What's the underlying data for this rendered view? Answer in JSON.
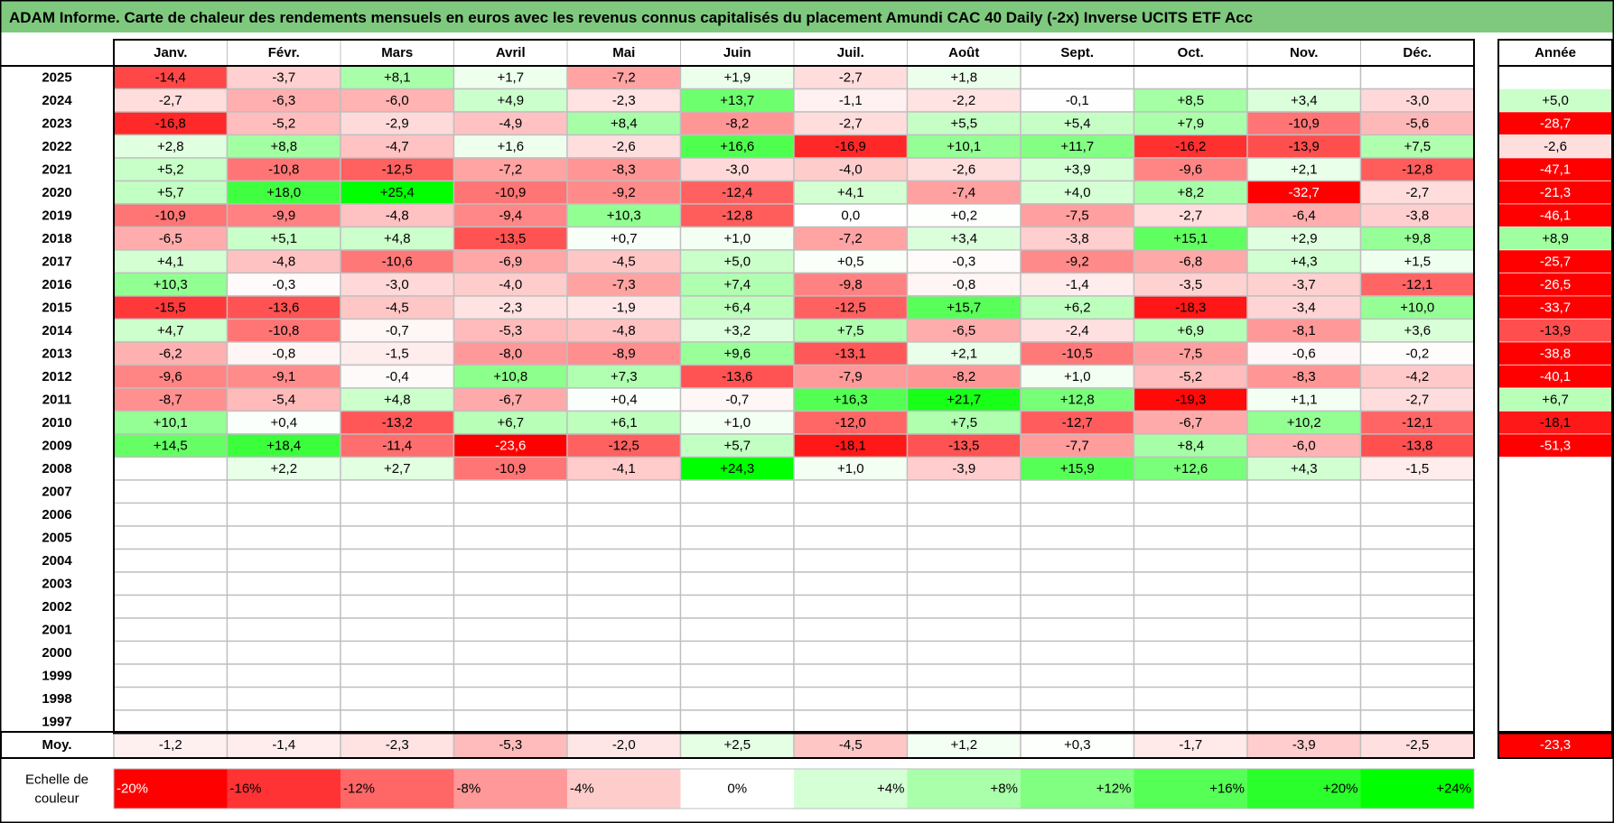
{
  "title": "ADAM Informe. Carte de chaleur des rendements mensuels en euros avec les revenus connus capitalisés du placement Amundi CAC 40 Daily (-2x) Inverse UCITS ETF Acc",
  "colors": {
    "title_bar": "#7fc97f",
    "negative": "#ff0000",
    "positive": "#00ff00",
    "neutral": "#ffffff",
    "grid": "#bfbfbf",
    "border": "#000000"
  },
  "chart_data": {
    "type": "heatmap",
    "months": [
      "Janv.",
      "Févr.",
      "Mars",
      "Avril",
      "Mai",
      "Juin",
      "Juil.",
      "Août",
      "Sept.",
      "Oct.",
      "Nov.",
      "Déc."
    ],
    "year_column_label": "Année",
    "rows": [
      {
        "year": "2025",
        "months": [
          "-14,4",
          "-3,7",
          "+8,1",
          "+1,7",
          "-7,2",
          "+1,9",
          "-2,7",
          "+1,8",
          "",
          "",
          "",
          ""
        ],
        "annual": ""
      },
      {
        "year": "2024",
        "months": [
          "-2,7",
          "-6,3",
          "-6,0",
          "+4,9",
          "-2,3",
          "+13,7",
          "-1,1",
          "-2,2",
          "-0,1",
          "+8,5",
          "+3,4",
          "-3,0"
        ],
        "annual": "+5,0"
      },
      {
        "year": "2023",
        "months": [
          "-16,8",
          "-5,2",
          "-2,9",
          "-4,9",
          "+8,4",
          "-8,2",
          "-2,7",
          "+5,5",
          "+5,4",
          "+7,9",
          "-10,9",
          "-5,6"
        ],
        "annual": "-28,7"
      },
      {
        "year": "2022",
        "months": [
          "+2,8",
          "+8,8",
          "-4,7",
          "+1,6",
          "-2,6",
          "+16,6",
          "-16,9",
          "+10,1",
          "+11,7",
          "-16,2",
          "-13,9",
          "+7,5"
        ],
        "annual": "-2,6"
      },
      {
        "year": "2021",
        "months": [
          "+5,2",
          "-10,8",
          "-12,5",
          "-7,2",
          "-8,3",
          "-3,0",
          "-4,0",
          "-2,6",
          "+3,9",
          "-9,6",
          "+2,1",
          "-12,8"
        ],
        "annual": "-47,1"
      },
      {
        "year": "2020",
        "months": [
          "+5,7",
          "+18,0",
          "+25,4",
          "-10,9",
          "-9,2",
          "-12,4",
          "+4,1",
          "-7,4",
          "+4,0",
          "+8,2",
          "-32,7",
          "-2,7"
        ],
        "annual": "-21,3"
      },
      {
        "year": "2019",
        "months": [
          "-10,9",
          "-9,9",
          "-4,8",
          "-9,4",
          "+10,3",
          "-12,8",
          "0,0",
          "+0,2",
          "-7,5",
          "-2,7",
          "-6,4",
          "-3,8"
        ],
        "annual": "-46,1"
      },
      {
        "year": "2018",
        "months": [
          "-6,5",
          "+5,1",
          "+4,8",
          "-13,5",
          "+0,7",
          "+1,0",
          "-7,2",
          "+3,4",
          "-3,8",
          "+15,1",
          "+2,9",
          "+9,8"
        ],
        "annual": "+8,9"
      },
      {
        "year": "2017",
        "months": [
          "+4,1",
          "-4,8",
          "-10,6",
          "-6,9",
          "-4,5",
          "+5,0",
          "+0,5",
          "-0,3",
          "-9,2",
          "-6,8",
          "+4,3",
          "+1,5"
        ],
        "annual": "-25,7"
      },
      {
        "year": "2016",
        "months": [
          "+10,3",
          "-0,3",
          "-3,0",
          "-4,0",
          "-7,3",
          "+7,4",
          "-9,8",
          "-0,8",
          "-1,4",
          "-3,5",
          "-3,7",
          "-12,1"
        ],
        "annual": "-26,5"
      },
      {
        "year": "2015",
        "months": [
          "-15,5",
          "-13,6",
          "-4,5",
          "-2,3",
          "-1,9",
          "+6,4",
          "-12,5",
          "+15,7",
          "+6,2",
          "-18,3",
          "-3,4",
          "+10,0"
        ],
        "annual": "-33,7"
      },
      {
        "year": "2014",
        "months": [
          "+4,7",
          "-10,8",
          "-0,7",
          "-5,3",
          "-4,8",
          "+3,2",
          "+7,5",
          "-6,5",
          "-2,4",
          "+6,9",
          "-8,1",
          "+3,6"
        ],
        "annual": "-13,9"
      },
      {
        "year": "2013",
        "months": [
          "-6,2",
          "-0,8",
          "-1,5",
          "-8,0",
          "-8,9",
          "+9,6",
          "-13,1",
          "+2,1",
          "-10,5",
          "-7,5",
          "-0,6",
          "-0,2"
        ],
        "annual": "-38,8"
      },
      {
        "year": "2012",
        "months": [
          "-9,6",
          "-9,1",
          "-0,4",
          "+10,8",
          "+7,3",
          "-13,6",
          "-7,9",
          "-8,2",
          "+1,0",
          "-5,2",
          "-8,3",
          "-4,2"
        ],
        "annual": "-40,1"
      },
      {
        "year": "2011",
        "months": [
          "-8,7",
          "-5,4",
          "+4,8",
          "-6,7",
          "+0,4",
          "-0,7",
          "+16,3",
          "+21,7",
          "+12,8",
          "-19,3",
          "+1,1",
          "-2,7"
        ],
        "annual": "+6,7"
      },
      {
        "year": "2010",
        "months": [
          "+10,1",
          "+0,4",
          "-13,2",
          "+6,7",
          "+6,1",
          "+1,0",
          "-12,0",
          "+7,5",
          "-12,7",
          "-6,7",
          "+10,2",
          "-12,1"
        ],
        "annual": "-18,1"
      },
      {
        "year": "2009",
        "months": [
          "+14,5",
          "+18,4",
          "-11,4",
          "-23,6",
          "-12,5",
          "+5,7",
          "-18,1",
          "-13,5",
          "-7,7",
          "+8,4",
          "-6,0",
          "-13,8"
        ],
        "annual": "-51,3"
      },
      {
        "year": "2008",
        "months": [
          "",
          "+2,2",
          "+2,7",
          "-10,9",
          "-4,1",
          "+24,3",
          "+1,0",
          "-3,9",
          "+15,9",
          "+12,6",
          "+4,3",
          "-1,5"
        ],
        "annual": ""
      },
      {
        "year": "2007",
        "months": [
          "",
          "",
          "",
          "",
          "",
          "",
          "",
          "",
          "",
          "",
          "",
          ""
        ],
        "annual": ""
      },
      {
        "year": "2006",
        "months": [
          "",
          "",
          "",
          "",
          "",
          "",
          "",
          "",
          "",
          "",
          "",
          ""
        ],
        "annual": ""
      },
      {
        "year": "2005",
        "months": [
          "",
          "",
          "",
          "",
          "",
          "",
          "",
          "",
          "",
          "",
          "",
          ""
        ],
        "annual": ""
      },
      {
        "year": "2004",
        "months": [
          "",
          "",
          "",
          "",
          "",
          "",
          "",
          "",
          "",
          "",
          "",
          ""
        ],
        "annual": ""
      },
      {
        "year": "2003",
        "months": [
          "",
          "",
          "",
          "",
          "",
          "",
          "",
          "",
          "",
          "",
          "",
          ""
        ],
        "annual": ""
      },
      {
        "year": "2002",
        "months": [
          "",
          "",
          "",
          "",
          "",
          "",
          "",
          "",
          "",
          "",
          "",
          ""
        ],
        "annual": ""
      },
      {
        "year": "2001",
        "months": [
          "",
          "",
          "",
          "",
          "",
          "",
          "",
          "",
          "",
          "",
          "",
          ""
        ],
        "annual": ""
      },
      {
        "year": "2000",
        "months": [
          "",
          "",
          "",
          "",
          "",
          "",
          "",
          "",
          "",
          "",
          "",
          ""
        ],
        "annual": ""
      },
      {
        "year": "1999",
        "months": [
          "",
          "",
          "",
          "",
          "",
          "",
          "",
          "",
          "",
          "",
          "",
          ""
        ],
        "annual": ""
      },
      {
        "year": "1998",
        "months": [
          "",
          "",
          "",
          "",
          "",
          "",
          "",
          "",
          "",
          "",
          "",
          ""
        ],
        "annual": ""
      },
      {
        "year": "1997",
        "months": [
          "",
          "",
          "",
          "",
          "",
          "",
          "",
          "",
          "",
          "",
          "",
          ""
        ],
        "annual": ""
      }
    ],
    "average": {
      "label": "Moy.",
      "months": [
        "-1,2",
        "-1,4",
        "-2,3",
        "-5,3",
        "-2,0",
        "+2,5",
        "-4,5",
        "+1,2",
        "+0,3",
        "-1,7",
        "-3,9",
        "-2,5"
      ],
      "annual": "-23,3"
    },
    "scale": {
      "label_line1": "Echelle de",
      "label_line2": "couleur",
      "steps": [
        {
          "label": "-20%",
          "value": -20,
          "color": "#ff0000"
        },
        {
          "label": "-16%",
          "value": -16,
          "color": "#ff3333"
        },
        {
          "label": "-12%",
          "value": -12,
          "color": "#ff6666"
        },
        {
          "label": "-8%",
          "value": -8,
          "color": "#ff9999"
        },
        {
          "label": "-4%",
          "value": -4,
          "color": "#ffcccc"
        },
        {
          "label": "0%",
          "value": 0,
          "color": "#ffffff"
        },
        {
          "label": "+4%",
          "value": 4,
          "color": "#d5ffd5"
        },
        {
          "label": "+8%",
          "value": 8,
          "color": "#aaffaa"
        },
        {
          "label": "+12%",
          "value": 12,
          "color": "#80ff80"
        },
        {
          "label": "+16%",
          "value": 16,
          "color": "#55ff55"
        },
        {
          "label": "+20%",
          "value": 20,
          "color": "#2bff2b"
        },
        {
          "label": "+24%",
          "value": 24,
          "color": "#00ff00"
        }
      ]
    }
  }
}
